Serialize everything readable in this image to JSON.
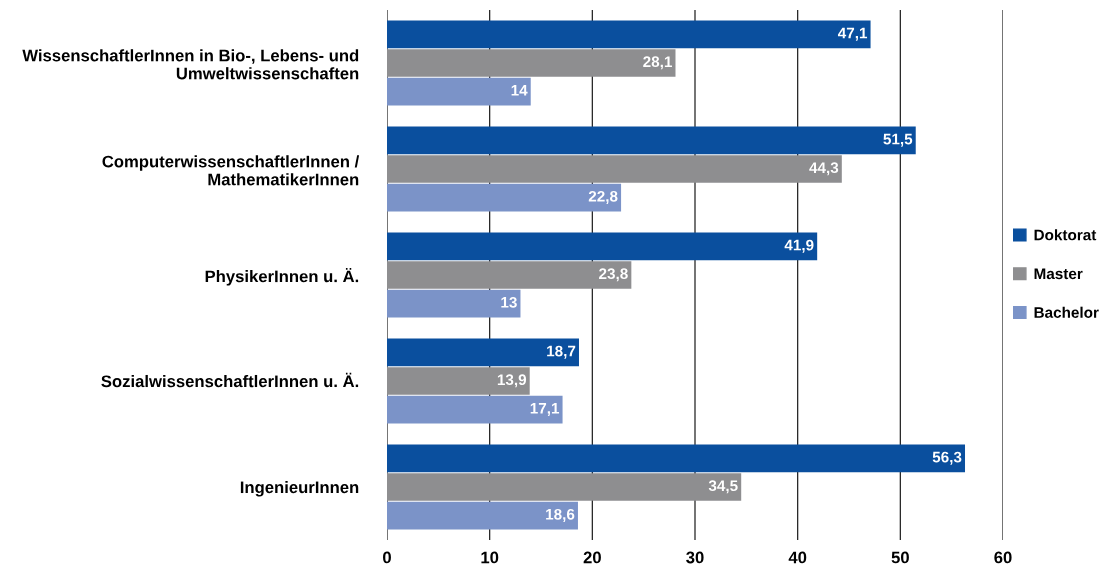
{
  "chart_data": {
    "type": "bar",
    "orientation": "horizontal",
    "categories": [
      "WissenschaftlerInnen in Bio-, Lebens- und\nUmweltwissenschaften",
      "ComputerwissenschaftlerInnen /\nMathematikerInnen",
      "PhysikerInnen u. Ä.",
      "SozialwissenschaftlerInnen u. Ä.",
      "IngenieurInnen"
    ],
    "series": [
      {
        "name": "Doktorat",
        "color": "#0a4f9e",
        "values": [
          47.1,
          51.5,
          41.9,
          18.7,
          56.3
        ],
        "value_labels": [
          "47,1",
          "51,5",
          "41,9",
          "18,7",
          "56,3"
        ]
      },
      {
        "name": "Master",
        "color": "#8e8e90",
        "values": [
          28.1,
          44.3,
          23.8,
          13.9,
          34.5
        ],
        "value_labels": [
          "28,1",
          "44,3",
          "23,8",
          "13,9",
          "34,5"
        ]
      },
      {
        "name": "Bachelor",
        "color": "#7b93c8",
        "values": [
          14,
          22.8,
          13,
          17.1,
          18.6
        ],
        "value_labels": [
          "14",
          "22,8",
          "13",
          "17,1",
          "18,6"
        ]
      }
    ],
    "xlim": [
      0,
      60
    ],
    "xticks": [
      0,
      10,
      20,
      30,
      40,
      50,
      60
    ],
    "grid": "x",
    "legend": "right"
  }
}
